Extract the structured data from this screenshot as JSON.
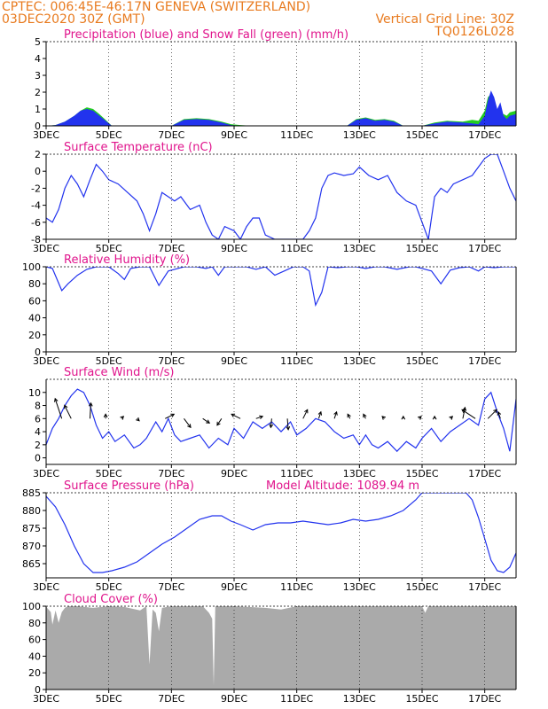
{
  "header": {
    "line1_left": "CPTEC:   006:45E-46:17N   GENEVA (SWITZERLAND)",
    "line2_left": "03DEC2020 30Z (GMT)",
    "line2_right": "Vertical Grid Line: 30Z",
    "line3_right": "TQ0126L028"
  },
  "colors": {
    "header": "#e87a1e",
    "panel_title": "#e0148c",
    "line": "#2233ee",
    "precip": "#2233ee",
    "snow": "#22cc22",
    "cloud": "#aaaaaa",
    "arrow": "#000000"
  },
  "x_axis": {
    "start_day": 3,
    "end_day": 18,
    "tick_days": [
      3,
      5,
      7,
      9,
      11,
      13,
      15,
      17
    ],
    "tick_labels": [
      "3DEC",
      "5DEC",
      "7DEC",
      "9DEC",
      "11DEC",
      "13DEC",
      "15DEC",
      "17DEC"
    ]
  },
  "chart_data": [
    {
      "id": "precip",
      "type": "area",
      "title": "Precipitation (blue) and Snow Fall (green) (mm/h)",
      "ylim": [
        0,
        5
      ],
      "yticks": [
        0,
        1,
        2,
        3,
        4,
        5
      ],
      "grid": "dotted",
      "series": [
        {
          "name": "Precipitation (blue)",
          "color": "#2233ee",
          "x": [
            3.0,
            3.3,
            3.6,
            3.9,
            4.1,
            4.3,
            4.5,
            4.7,
            4.9,
            5.1,
            7.0,
            7.4,
            7.8,
            8.2,
            8.6,
            8.9,
            9.2,
            9.6,
            12.6,
            12.9,
            13.2,
            13.5,
            13.8,
            14.1,
            14.4,
            15.0,
            15.4,
            15.8,
            16.3,
            16.6,
            16.8,
            17.0,
            17.1,
            17.2,
            17.3,
            17.4,
            17.5,
            17.6,
            17.7,
            17.8,
            18.0
          ],
          "y": [
            0,
            0.05,
            0.25,
            0.6,
            0.9,
            1.0,
            0.9,
            0.6,
            0.3,
            0,
            0,
            0.35,
            0.4,
            0.35,
            0.2,
            0.05,
            0,
            0,
            0,
            0.35,
            0.45,
            0.3,
            0.35,
            0.25,
            0,
            0,
            0.15,
            0.25,
            0.2,
            0.15,
            0.1,
            0.6,
            1.5,
            2.1,
            1.7,
            1.0,
            1.4,
            0.6,
            0.4,
            0.6,
            0.7
          ]
        },
        {
          "name": "Snow Fall (green)",
          "color": "#22cc22",
          "x": [
            3.0,
            3.3,
            3.6,
            3.9,
            4.1,
            4.3,
            4.5,
            4.7,
            4.9,
            5.1,
            7.0,
            7.4,
            7.8,
            8.2,
            8.6,
            8.9,
            9.2,
            9.6,
            12.6,
            12.9,
            13.2,
            13.5,
            13.8,
            14.1,
            14.4,
            15.0,
            15.4,
            15.8,
            16.3,
            16.6,
            16.8,
            17.0,
            17.1,
            17.2,
            17.3,
            17.4,
            17.5,
            17.6,
            17.7,
            17.8,
            18.0
          ],
          "y": [
            0,
            0.05,
            0.25,
            0.6,
            0.9,
            1.1,
            1.0,
            0.7,
            0.35,
            0,
            0,
            0.4,
            0.45,
            0.4,
            0.25,
            0.1,
            0.05,
            0,
            0,
            0.4,
            0.5,
            0.35,
            0.4,
            0.3,
            0,
            0,
            0.2,
            0.3,
            0.25,
            0.35,
            0.3,
            0.9,
            1.7,
            1.9,
            1.3,
            1.0,
            0.8,
            0.7,
            0.6,
            0.8,
            0.9
          ]
        }
      ]
    },
    {
      "id": "temperature",
      "type": "line",
      "title": "Surface Temperature (nC)",
      "ylim": [
        -8,
        2
      ],
      "yticks": [
        -8,
        -6,
        -4,
        -2,
        0,
        2
      ],
      "grid": "dotted",
      "series": [
        {
          "name": "",
          "color": "#2233ee",
          "x": [
            3.0,
            3.2,
            3.4,
            3.6,
            3.8,
            4.0,
            4.2,
            4.4,
            4.6,
            4.8,
            5.0,
            5.3,
            5.6,
            5.9,
            6.1,
            6.3,
            6.5,
            6.7,
            6.9,
            7.1,
            7.3,
            7.6,
            7.9,
            8.1,
            8.3,
            8.5,
            8.7,
            9.0,
            9.2,
            9.4,
            9.6,
            9.8,
            10.0,
            10.3,
            10.6,
            10.9,
            11.2,
            11.4,
            11.6,
            11.8,
            12.0,
            12.2,
            12.5,
            12.8,
            13.0,
            13.3,
            13.6,
            13.9,
            14.2,
            14.5,
            14.8,
            15.0,
            15.2,
            15.4,
            15.6,
            15.8,
            16.0,
            16.3,
            16.6,
            16.8,
            17.0,
            17.2,
            17.4,
            17.6,
            17.8,
            18.0
          ],
          "y": [
            -5.5,
            -6.0,
            -4.5,
            -2.0,
            -0.5,
            -1.5,
            -3.0,
            -1.0,
            0.8,
            0.0,
            -1.0,
            -1.5,
            -2.5,
            -3.5,
            -5.0,
            -7.0,
            -5.0,
            -2.5,
            -3.0,
            -3.5,
            -3.0,
            -4.5,
            -4.0,
            -6.0,
            -7.5,
            -8.0,
            -6.5,
            -7.0,
            -8.0,
            -6.5,
            -5.5,
            -5.5,
            -7.5,
            -8.0,
            -8.0,
            -8.0,
            -8.0,
            -7.0,
            -5.5,
            -2.0,
            -0.5,
            -0.2,
            -0.5,
            -0.3,
            0.5,
            -0.5,
            -1.0,
            -0.5,
            -2.5,
            -3.5,
            -4.0,
            -6.0,
            -8.0,
            -3.0,
            -2.0,
            -2.5,
            -1.5,
            -1.0,
            -0.5,
            0.5,
            1.5,
            2.0,
            2.0,
            0.0,
            -2.0,
            -3.5
          ]
        }
      ]
    },
    {
      "id": "humidity",
      "type": "line",
      "title": "Relative Humidity (%)",
      "ylim": [
        0,
        100
      ],
      "yticks": [
        0,
        20,
        40,
        60,
        80,
        100
      ],
      "grid": "dotted",
      "series": [
        {
          "name": "",
          "color": "#2233ee",
          "x": [
            3.0,
            3.2,
            3.5,
            3.7,
            4.0,
            4.3,
            4.6,
            5.0,
            5.3,
            5.5,
            5.7,
            6.0,
            6.3,
            6.6,
            6.9,
            7.1,
            7.4,
            7.8,
            8.1,
            8.3,
            8.5,
            8.7,
            9.0,
            9.4,
            9.7,
            10.0,
            10.3,
            10.6,
            10.9,
            11.2,
            11.4,
            11.6,
            11.8,
            12.0,
            12.3,
            12.6,
            12.9,
            13.2,
            13.5,
            13.8,
            14.2,
            14.6,
            14.8,
            15.0,
            15.3,
            15.6,
            15.9,
            16.2,
            16.5,
            16.8,
            17.0,
            17.3,
            17.6,
            18.0
          ],
          "y": [
            100,
            98,
            72,
            80,
            90,
            97,
            100,
            100,
            92,
            85,
            98,
            100,
            100,
            78,
            95,
            97,
            100,
            100,
            98,
            100,
            90,
            100,
            100,
            100,
            97,
            100,
            90,
            95,
            100,
            100,
            95,
            55,
            70,
            100,
            99,
            100,
            100,
            98,
            100,
            100,
            97,
            100,
            100,
            98,
            95,
            80,
            96,
            99,
            100,
            95,
            100,
            99,
            100,
            100
          ]
        }
      ]
    },
    {
      "id": "wind",
      "type": "line",
      "title": "Surface Wind (m/s)",
      "ylim": [
        -1,
        12
      ],
      "yticks": [
        0,
        2,
        4,
        6,
        8,
        10
      ],
      "grid": "dotted",
      "series": [
        {
          "name": "",
          "color": "#2233ee",
          "x": [
            3.0,
            3.2,
            3.4,
            3.6,
            3.8,
            4.0,
            4.2,
            4.4,
            4.6,
            4.8,
            5.0,
            5.2,
            5.5,
            5.8,
            6.0,
            6.2,
            6.5,
            6.7,
            6.9,
            7.1,
            7.3,
            7.6,
            7.9,
            8.2,
            8.5,
            8.8,
            9.0,
            9.3,
            9.6,
            9.9,
            10.2,
            10.5,
            10.8,
            11.0,
            11.3,
            11.6,
            11.9,
            12.2,
            12.5,
            12.8,
            13.0,
            13.2,
            13.4,
            13.6,
            13.9,
            14.2,
            14.5,
            14.8,
            15.0,
            15.3,
            15.6,
            15.9,
            16.2,
            16.5,
            16.8,
            17.0,
            17.2,
            17.4,
            17.6,
            17.8,
            18.0
          ],
          "y": [
            2.0,
            4.5,
            6.0,
            8.0,
            9.5,
            10.5,
            10.0,
            8.0,
            5.0,
            3.0,
            4.0,
            2.5,
            3.5,
            1.5,
            2.0,
            3.0,
            5.5,
            4.0,
            6.0,
            3.5,
            2.5,
            3.0,
            3.5,
            1.5,
            3.0,
            2.0,
            4.5,
            3.0,
            5.5,
            4.5,
            5.5,
            4.0,
            5.5,
            3.5,
            4.5,
            6.0,
            5.5,
            4.0,
            3.0,
            3.5,
            2.0,
            3.5,
            2.0,
            1.5,
            2.5,
            1.0,
            2.5,
            1.5,
            3.0,
            4.5,
            2.5,
            4.0,
            5.0,
            6.0,
            5.0,
            9.0,
            10.0,
            7.0,
            4.5,
            1.0,
            9.0
          ]
        }
      ],
      "arrows": {
        "x": [
          3.5,
          3.8,
          4.4,
          4.9,
          5.4,
          5.9,
          6.8,
          7.4,
          8.0,
          8.6,
          9.2,
          9.7,
          10.2,
          10.7,
          11.2,
          11.7,
          12.2,
          12.7,
          13.2,
          13.8,
          14.4,
          14.9,
          15.4,
          15.9,
          16.3,
          16.7,
          17.1,
          17.5
        ],
        "u": [
          -1.5,
          -1.5,
          0.2,
          0.0,
          0.5,
          0.5,
          2.0,
          1.5,
          1.5,
          -1.0,
          -2.0,
          1.5,
          -0.2,
          0.2,
          1.0,
          0.5,
          0.5,
          -0.5,
          -0.5,
          -0.5,
          0.0,
          0.5,
          0.0,
          0.5,
          0.5,
          -3.0,
          2.0,
          -0.5
        ],
        "v": [
          4.5,
          3.0,
          3.5,
          1.0,
          0.5,
          -0.5,
          1.0,
          -2.0,
          -1.0,
          -1.5,
          1.0,
          0.5,
          -2.0,
          -2.5,
          2.0,
          1.5,
          1.5,
          1.0,
          1.0,
          0.5,
          0.5,
          0.5,
          0.5,
          0.5,
          2.5,
          2.0,
          2.0,
          1.5
        ]
      }
    },
    {
      "id": "pressure",
      "type": "line",
      "title": "Surface Pressure (hPa)",
      "subtitle": "Model Altitude: 1089.94  m",
      "ylim": [
        861,
        885
      ],
      "yticks": [
        865,
        870,
        875,
        880,
        885
      ],
      "grid": "dotted",
      "series": [
        {
          "name": "",
          "color": "#2233ee",
          "x": [
            3.0,
            3.3,
            3.6,
            3.9,
            4.2,
            4.5,
            4.8,
            5.1,
            5.5,
            5.9,
            6.3,
            6.7,
            7.1,
            7.5,
            7.9,
            8.3,
            8.6,
            8.9,
            9.2,
            9.6,
            10.0,
            10.4,
            10.8,
            11.2,
            11.6,
            12.0,
            12.4,
            12.8,
            13.2,
            13.6,
            14.0,
            14.4,
            14.8,
            15.0,
            15.3,
            15.6,
            15.9,
            16.2,
            16.4,
            16.6,
            16.8,
            17.0,
            17.2,
            17.4,
            17.6,
            17.8,
            18.0
          ],
          "y": [
            884,
            881,
            876,
            870,
            865,
            862.5,
            862.5,
            863,
            864,
            865.5,
            868,
            870.5,
            872.5,
            875,
            877.5,
            878.5,
            878.5,
            877,
            876,
            874.5,
            876,
            876.5,
            876.5,
            877,
            876.5,
            876,
            876.5,
            877.5,
            877,
            877.5,
            878.5,
            880,
            883,
            885,
            885,
            885,
            885,
            885,
            885,
            883,
            878,
            872,
            866,
            863,
            862.5,
            864,
            868
          ]
        }
      ]
    },
    {
      "id": "cloud",
      "type": "area",
      "title": "Cloud Cover (%)",
      "ylim": [
        0,
        100
      ],
      "yticks": [
        0,
        20,
        40,
        60,
        80,
        100
      ],
      "grid": "dotted",
      "series": [
        {
          "name": "",
          "color": "#aaaaaa",
          "x": [
            3.0,
            3.05,
            3.15,
            3.2,
            3.3,
            3.4,
            3.5,
            3.6,
            3.7,
            4.0,
            4.5,
            5.0,
            5.5,
            6.0,
            6.2,
            6.3,
            6.4,
            6.5,
            6.6,
            6.7,
            7.0,
            7.5,
            8.0,
            8.2,
            8.3,
            8.35,
            8.4,
            8.5,
            8.6,
            9.0,
            10.0,
            10.5,
            11.0,
            12.0,
            13.0,
            14.0,
            15.0,
            15.1,
            15.2,
            16.0,
            17.0,
            18.0
          ],
          "y": [
            100,
            97,
            93,
            78,
            95,
            80,
            93,
            98,
            100,
            100,
            98,
            100,
            99,
            95,
            100,
            30,
            96,
            92,
            70,
            98,
            100,
            100,
            100,
            92,
            85,
            5,
            100,
            100,
            100,
            100,
            98,
            96,
            100,
            100,
            100,
            100,
            100,
            92,
            100,
            100,
            100,
            100
          ]
        }
      ]
    }
  ]
}
